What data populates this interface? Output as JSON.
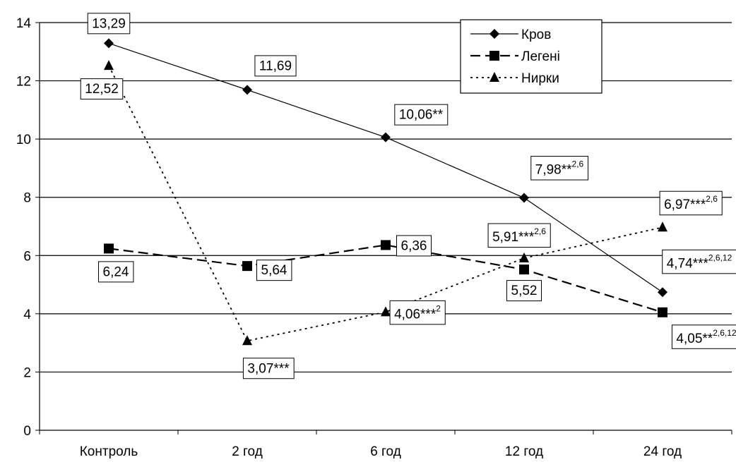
{
  "chart_data": {
    "type": "line",
    "categories": [
      "Контроль",
      "2 год",
      "6 год",
      "12 год",
      "24 год"
    ],
    "ylim": [
      0,
      14
    ],
    "yticks": [
      0,
      2,
      4,
      6,
      8,
      10,
      12,
      14
    ],
    "grid": true,
    "legend_position": "top-right",
    "series": [
      {
        "name": "Кров",
        "values": [
          13.29,
          11.69,
          10.06,
          7.98,
          4.74
        ],
        "labels": [
          {
            "main": "13,29",
            "sup": ""
          },
          {
            "main": "11,69",
            "sup": ""
          },
          {
            "main": "10,06**",
            "sup": ""
          },
          {
            "main": "7,98**",
            "sup": "2,6"
          },
          {
            "main": "4,74***",
            "sup": "2,6,12"
          }
        ],
        "style": "solid",
        "marker": "diamond",
        "color": "#000000"
      },
      {
        "name": "Легені",
        "values": [
          6.24,
          5.64,
          6.36,
          5.52,
          4.05
        ],
        "labels": [
          {
            "main": "6,24",
            "sup": ""
          },
          {
            "main": "5,64",
            "sup": ""
          },
          {
            "main": "6,36",
            "sup": ""
          },
          {
            "main": "5,52",
            "sup": ""
          },
          {
            "main": "4,05**",
            "sup": "2,6,12"
          }
        ],
        "style": "dashed",
        "marker": "square",
        "color": "#000000"
      },
      {
        "name": "Нирки",
        "values": [
          12.52,
          3.07,
          4.06,
          5.91,
          6.97
        ],
        "labels": [
          {
            "main": "12,52",
            "sup": ""
          },
          {
            "main": "3,07***",
            "sup": ""
          },
          {
            "main": "4,06***",
            "sup": "2"
          },
          {
            "main": "5,91***",
            "sup": "2,6"
          },
          {
            "main": "6,97***",
            "sup": "2,6"
          }
        ],
        "style": "dotted",
        "marker": "triangle",
        "color": "#000000"
      }
    ]
  }
}
